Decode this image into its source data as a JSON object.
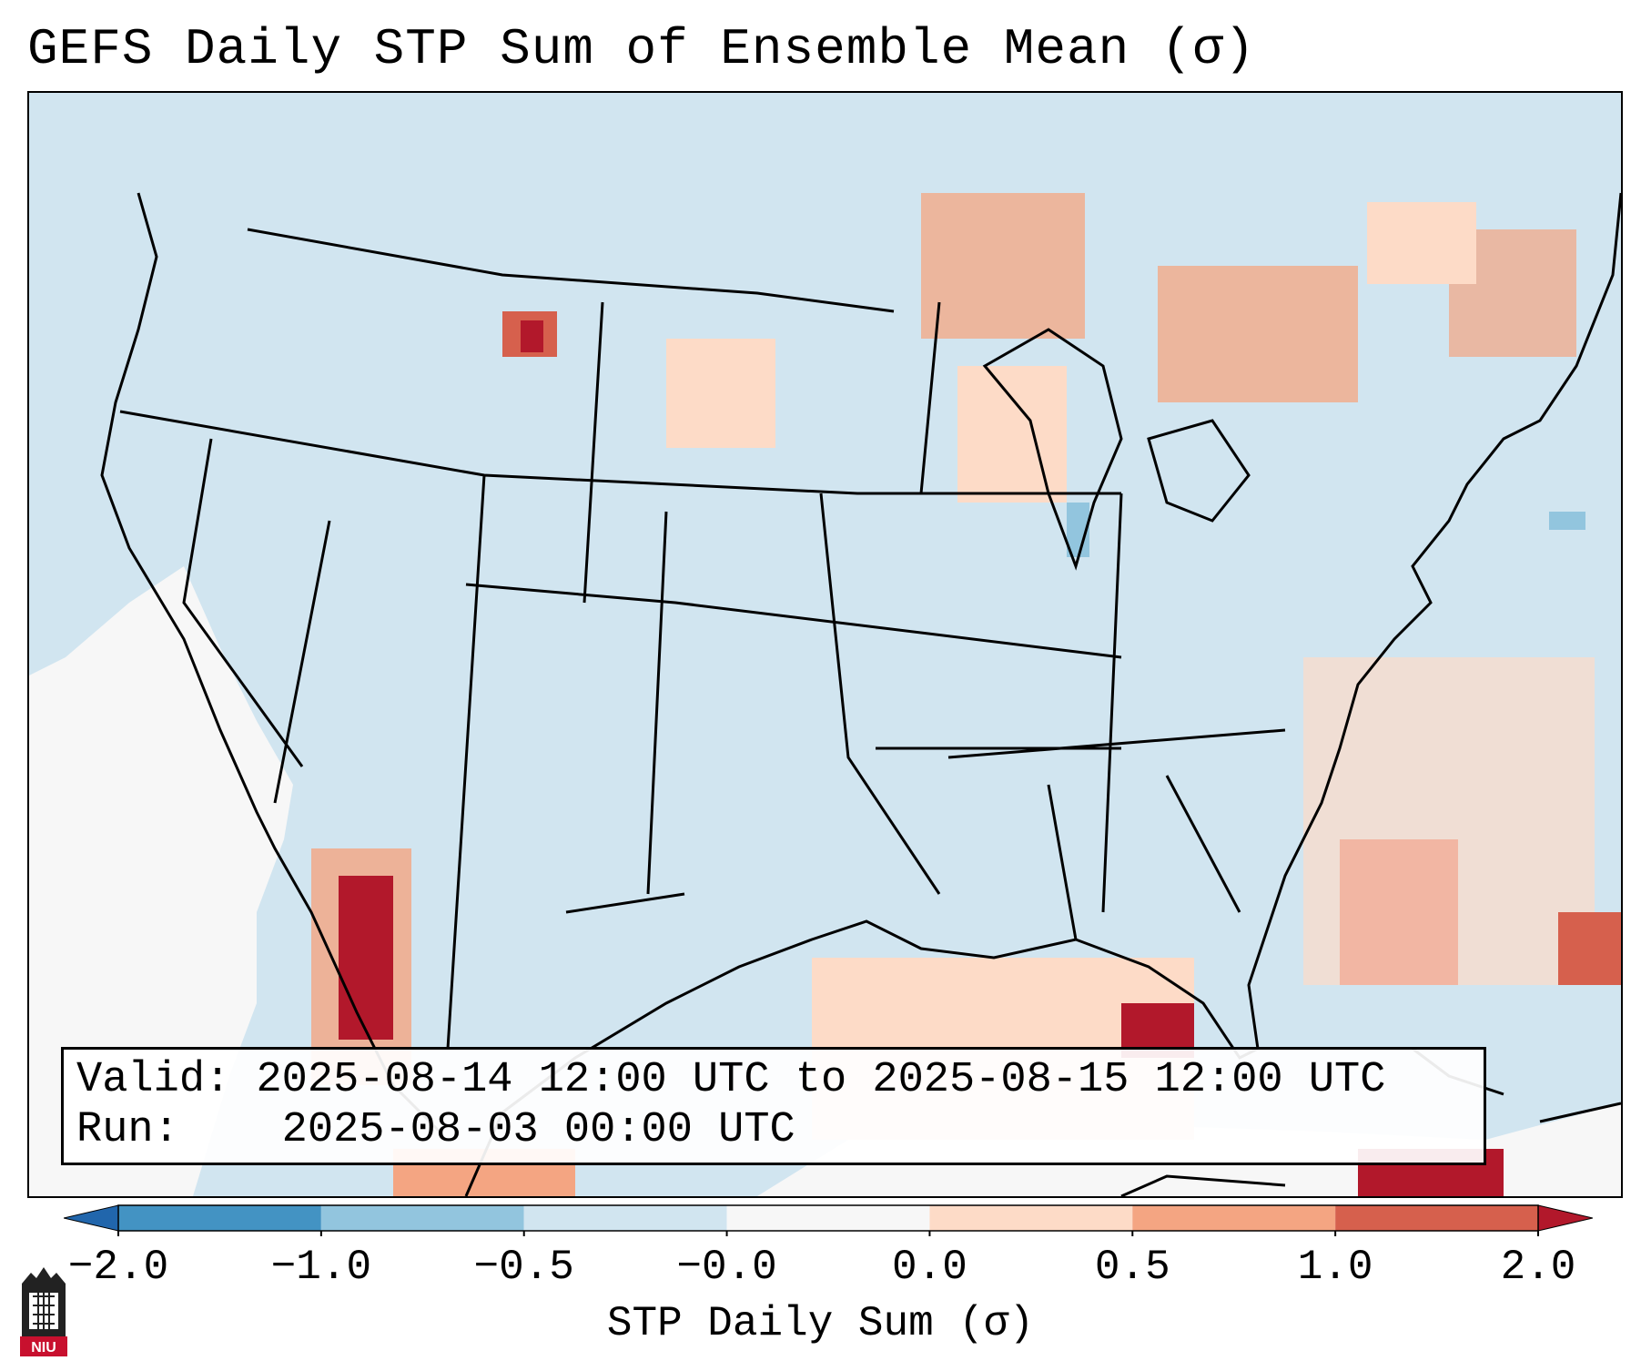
{
  "title": "GEFS Daily STP Sum of Ensemble Mean (σ)",
  "info": {
    "valid_label": "Valid:",
    "valid_value": "2025-08-14 12:00 UTC to 2025-08-15 12:00 UTC",
    "run_label": "Run:",
    "run_value": "2025-08-03 00:00 UTC"
  },
  "colorbar": {
    "label": "STP Daily Sum (σ)",
    "ticks": [
      "−2.0",
      "−1.0",
      "−0.5",
      "−0.0",
      "0.0",
      "0.5",
      "1.0",
      "2.0"
    ],
    "colors": [
      "#2166ac",
      "#4393c3",
      "#92c5de",
      "#d1e5f0",
      "#f7f7f7",
      "#fddbc7",
      "#f4a582",
      "#d6604d",
      "#b2182b"
    ]
  },
  "logo": {
    "text": "NIU",
    "icon": "niu-castle-icon"
  },
  "chart_data": {
    "type": "heatmap",
    "title": "GEFS Daily STP Sum of Ensemble Mean (σ)",
    "variable": "STP Daily Sum (σ)",
    "levels": [
      -2.0,
      -1.0,
      -0.5,
      -0.0,
      0.0,
      0.5,
      1.0,
      2.0
    ],
    "extend": "both",
    "region": "Contiguous United States",
    "map_base_color_value": -0.1
  }
}
